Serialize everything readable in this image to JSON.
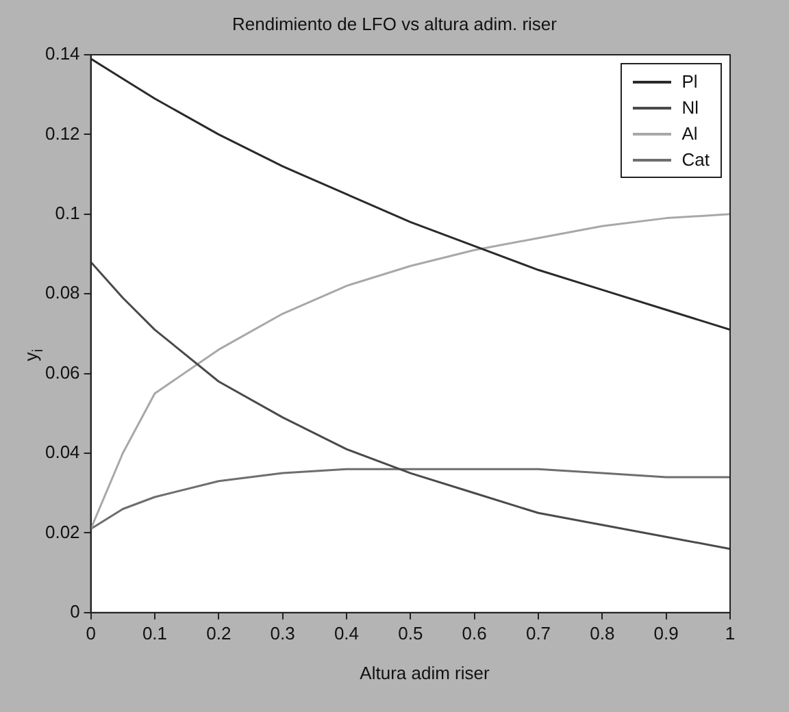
{
  "chart_data": {
    "type": "line",
    "title": "Rendimiento de LFO vs altura adim. riser",
    "xlabel": "Altura adim riser",
    "ylabel": "y$_{i}$",
    "x": [
      0,
      0.05,
      0.1,
      0.2,
      0.3,
      0.4,
      0.5,
      0.6,
      0.7,
      0.8,
      0.9,
      1
    ],
    "series": [
      {
        "name": "Pl",
        "color": "#2a2a2a",
        "values": [
          0.139,
          0.134,
          0.129,
          0.12,
          0.112,
          0.105,
          0.098,
          0.092,
          0.086,
          0.081,
          0.076,
          0.071
        ]
      },
      {
        "name": "Nl",
        "color": "#4a4a4a",
        "values": [
          0.088,
          0.079,
          0.071,
          0.058,
          0.049,
          0.041,
          0.035,
          0.03,
          0.025,
          0.022,
          0.019,
          0.016
        ]
      },
      {
        "name": "Al",
        "color": "#a8a8a8",
        "values": [
          0.021,
          0.04,
          0.055,
          0.066,
          0.075,
          0.082,
          0.087,
          0.091,
          0.094,
          0.097,
          0.099,
          0.1
        ]
      },
      {
        "name": "Cat",
        "color": "#6e6e6e",
        "values": [
          0.021,
          0.026,
          0.029,
          0.033,
          0.035,
          0.036,
          0.036,
          0.036,
          0.036,
          0.035,
          0.034,
          0.034
        ]
      }
    ],
    "xlim": [
      0,
      1
    ],
    "xticks": [
      0,
      0.1,
      0.2,
      0.3,
      0.4,
      0.5,
      0.6,
      0.7,
      0.8,
      0.9,
      1
    ],
    "ylim": [
      0,
      0.14
    ],
    "yticks": [
      0,
      0.02,
      0.04,
      0.06,
      0.08,
      0.1,
      0.12,
      0.14
    ],
    "grid": false,
    "legend": "top right",
    "marker": "none",
    "line_style": "solid"
  }
}
